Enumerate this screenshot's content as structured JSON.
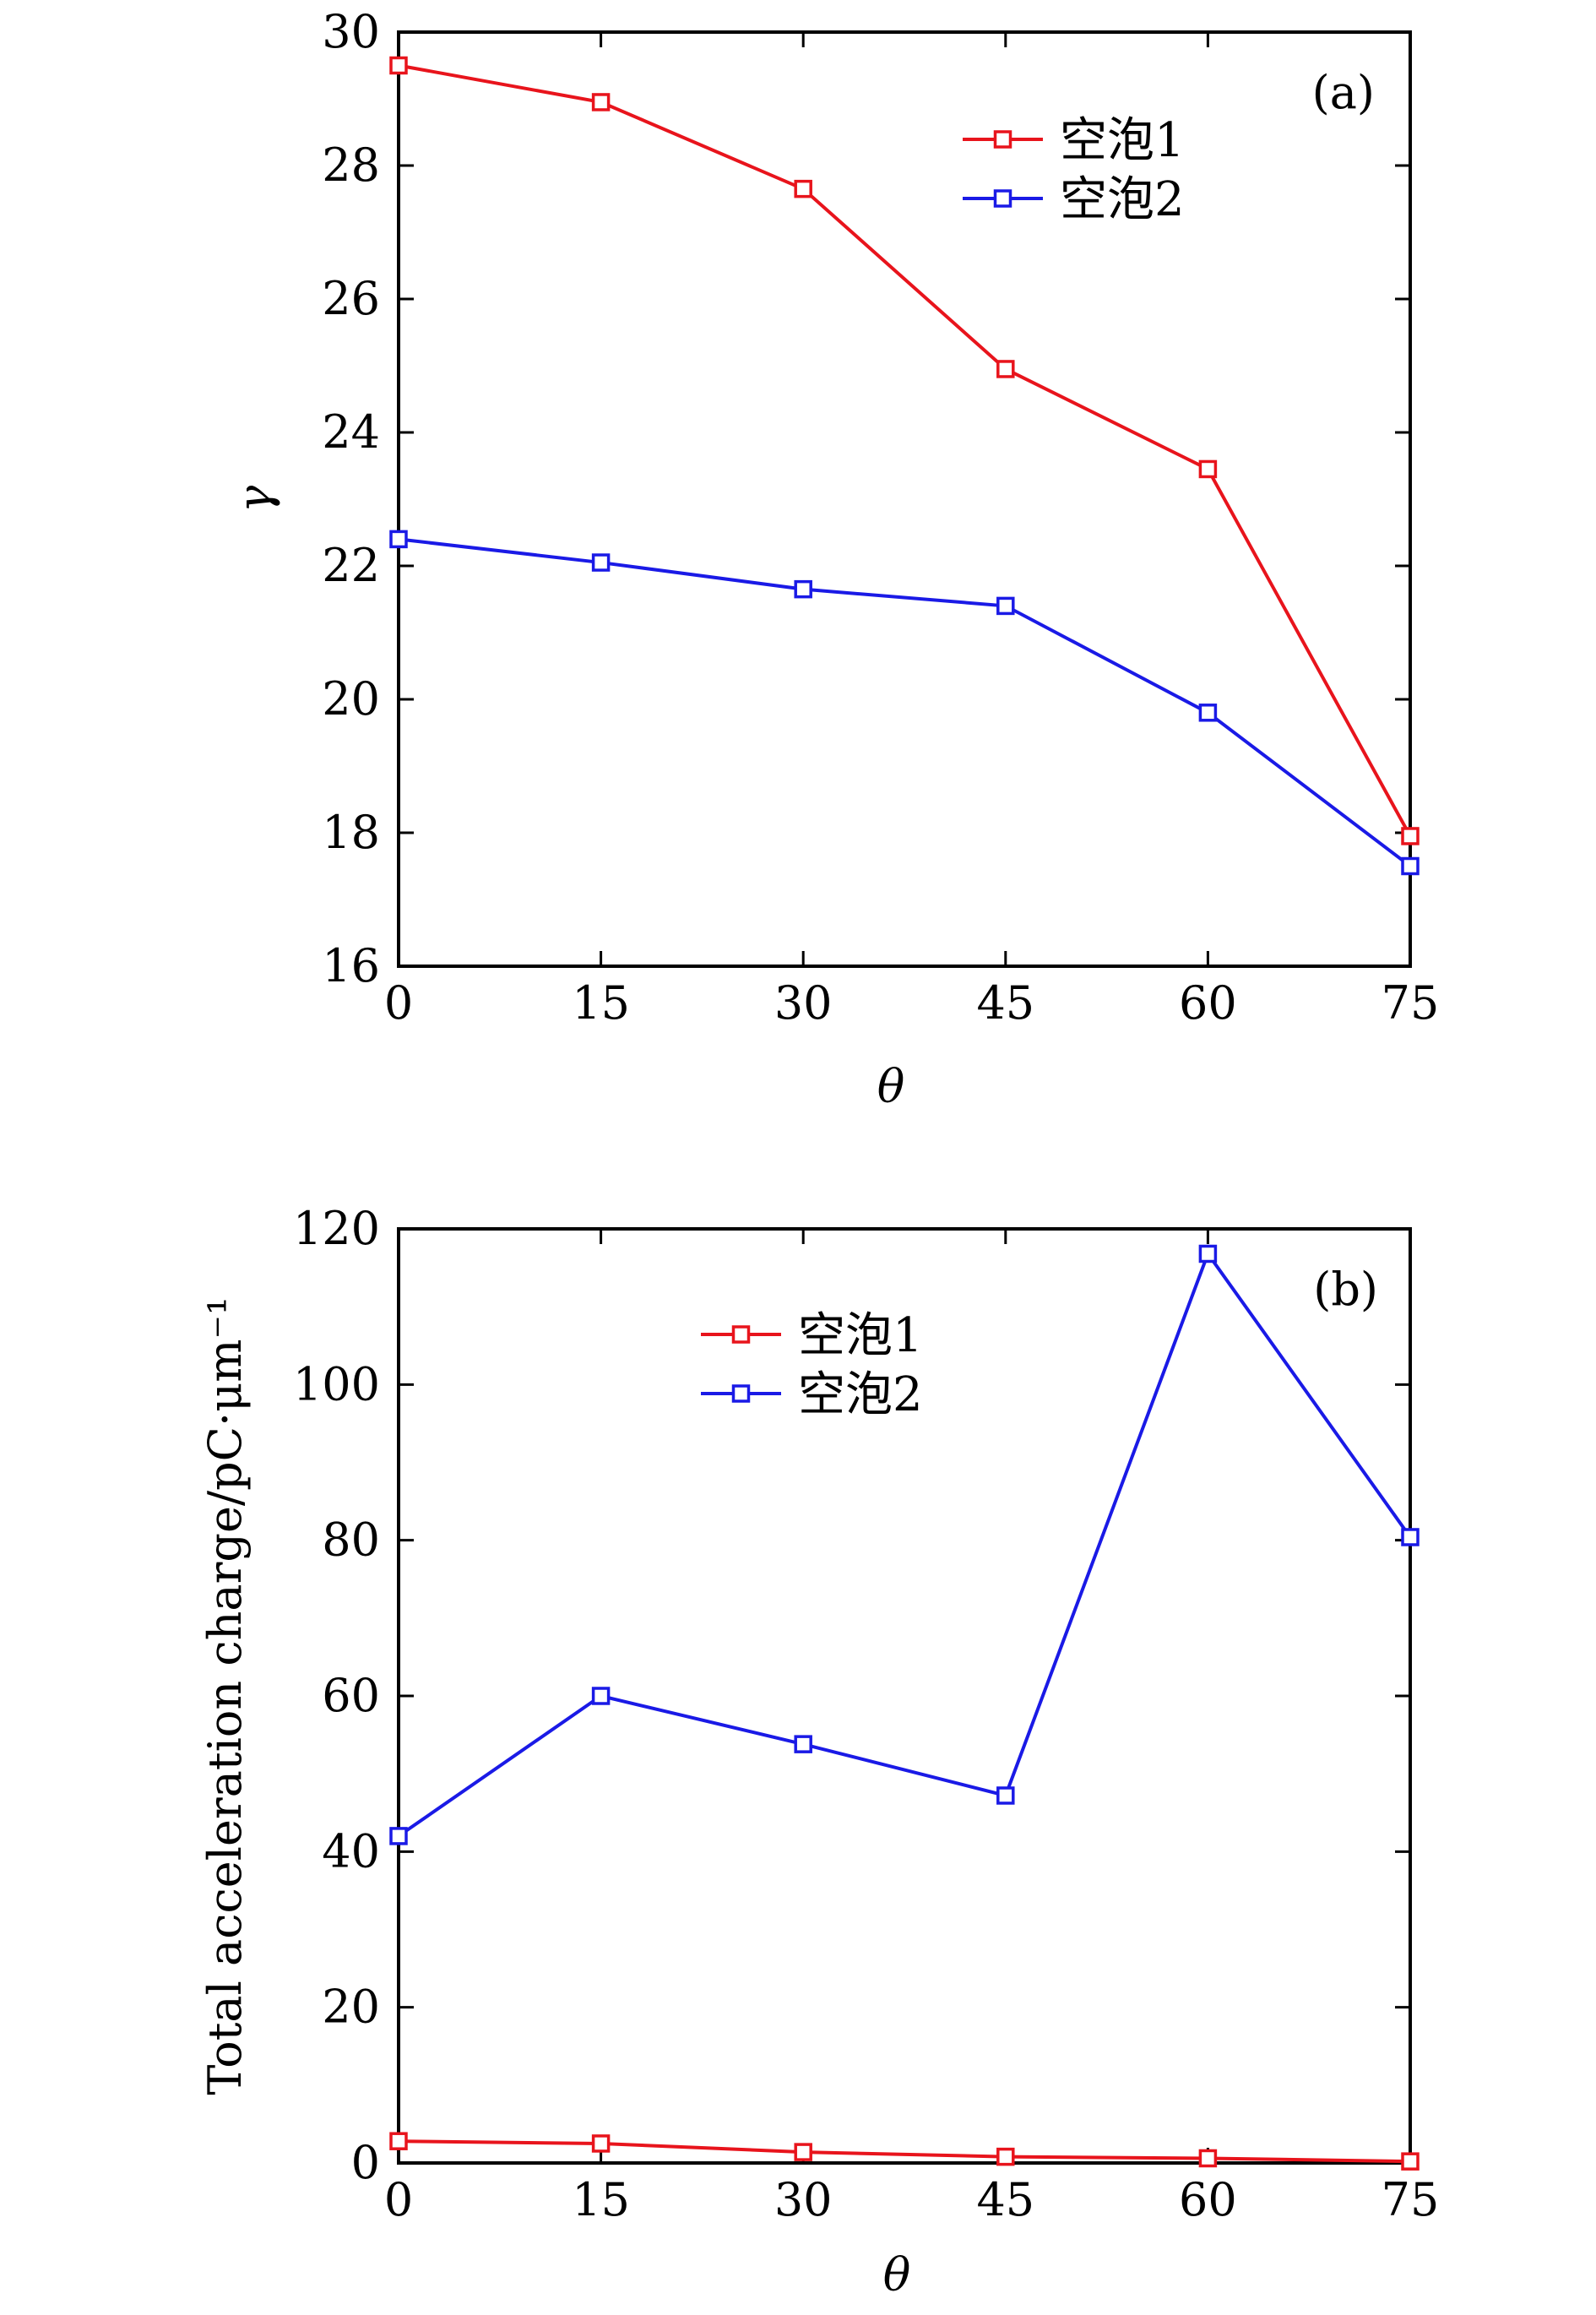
{
  "chart_data": [
    {
      "type": "line",
      "panel_label": "(a)",
      "xlabel": "θ",
      "ylabel": "γ",
      "x": [
        0,
        15,
        30,
        45,
        60,
        75
      ],
      "xticks": [
        "0",
        "15",
        "30",
        "45",
        "60",
        "75"
      ],
      "ylim": [
        16,
        30
      ],
      "yticks": [
        "16",
        "18",
        "20",
        "22",
        "24",
        "26",
        "28",
        "30"
      ],
      "legend_position": "top-center",
      "series": [
        {
          "name": "空泡1",
          "color": "#e8141c",
          "values": [
            29.5,
            28.95,
            27.65,
            24.95,
            23.45,
            17.95
          ]
        },
        {
          "name": "空泡2",
          "color": "#1a1ae6",
          "values": [
            22.4,
            22.05,
            21.65,
            21.4,
            19.8,
            17.5
          ]
        }
      ]
    },
    {
      "type": "line",
      "panel_label": "(b)",
      "xlabel": "θ",
      "ylabel": "Total acceleration charge/pC·μm⁻¹",
      "x": [
        0,
        15,
        30,
        45,
        60,
        75
      ],
      "xticks": [
        "0",
        "15",
        "30",
        "45",
        "60",
        "75"
      ],
      "ylim": [
        0,
        120
      ],
      "yticks": [
        "0",
        "20",
        "40",
        "60",
        "80",
        "100",
        "120"
      ],
      "legend_position": "top-center",
      "series": [
        {
          "name": "空泡1",
          "color": "#e8141c",
          "values": [
            2.8,
            2.5,
            1.4,
            0.8,
            0.6,
            0.2
          ]
        },
        {
          "name": "空泡2",
          "color": "#1a1ae6",
          "values": [
            42,
            60,
            53.8,
            47.2,
            116.8,
            80.4
          ]
        }
      ]
    }
  ]
}
